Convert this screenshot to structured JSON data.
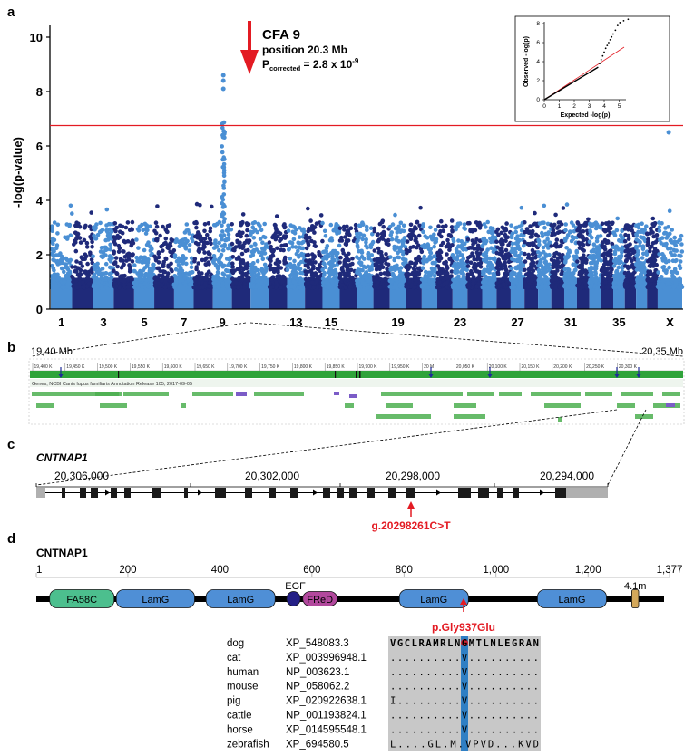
{
  "panels": {
    "a": "a",
    "b": "b",
    "c": "c",
    "d": "d"
  },
  "manhattan": {
    "ylabel": "-log(p-value)",
    "yticks": [
      0,
      2,
      4,
      6,
      8,
      10
    ],
    "ylim": [
      0,
      10.5
    ],
    "threshold": 6.75,
    "xticks": [
      "1",
      "3",
      "5",
      "7",
      "9",
      "13",
      "15",
      "19",
      "23",
      "27",
      "31",
      "35",
      "X"
    ],
    "chromosomes": 39,
    "colors": {
      "light": "#4a8fd4",
      "dark": "#1f2a7a",
      "threshold": "#e31b23",
      "arrow": "#e31b23"
    },
    "annotation": {
      "title": "CFA 9",
      "position": "position 20.3 Mb",
      "p_prefix": "P",
      "p_sub": "corrected",
      "p_value": " = 2.8 x 10",
      "p_exp": "-9"
    },
    "peak_points": [
      8.6,
      8.4,
      8.1
    ],
    "x_chr_point": 6.5
  },
  "qqplot": {
    "xlabel": "Expected -log(p)",
    "ylabel": "Observed -log(p)",
    "xticks": [
      "0",
      "1",
      "2",
      "3",
      "4",
      "5"
    ],
    "yticks": [
      "0",
      "2",
      "4",
      "6",
      "8"
    ]
  },
  "region": {
    "left": "19,40 Mb",
    "right": "20,35 Mb",
    "ruler_ticks": [
      "19,400 K",
      "19,450 K",
      "19,500 K",
      "19,550 K",
      "19,600 K",
      "19,650 K",
      "19,700 K",
      "19,750 K",
      "19,800 K",
      "19,850 K",
      "19,900 K",
      "19,950 K",
      "20 M",
      "20,050 K",
      "20,100 K",
      "20,150 K",
      "20,200 K",
      "20,250 K",
      "20,300 K"
    ],
    "genes_label": "Genes, NCBI Canis lupus familiaris Annotation Release 105, 2017-09-05"
  },
  "gene": {
    "name": "CNTNAP1",
    "coords": [
      "20,306,000",
      "20,302,000",
      "20,298,000",
      "20,294,000"
    ],
    "variant": "g.20298261C>T"
  },
  "protein": {
    "name": "CNTNAP1",
    "ticks": [
      "1",
      "200",
      "400",
      "600",
      "800",
      "1,000",
      "1,200",
      "1,377"
    ],
    "domains": [
      "FA58C",
      "LamG",
      "LamG",
      "EGF",
      "FReD",
      "LamG",
      "LamG",
      "4.1m"
    ],
    "variant": "p.Gly937Glu",
    "alignment": [
      {
        "species": "dog",
        "acc": "XP_548083.3",
        "seq": "VGCLRAMRLNGMTLNLEGRAN"
      },
      {
        "species": "cat",
        "acc": "XP_003996948.1",
        "seq": "..........V.........."
      },
      {
        "species": "human",
        "acc": "NP_003623.1",
        "seq": "..........V.........."
      },
      {
        "species": "mouse",
        "acc": "NP_058062.2",
        "seq": "..........V.........."
      },
      {
        "species": "pig",
        "acc": "XP_020922638.1",
        "seq": "I.........V.........."
      },
      {
        "species": "cattle",
        "acc": "NP_001193824.1",
        "seq": "..........V.........."
      },
      {
        "species": "horse",
        "acc": "XP_014595548.1",
        "seq": "..........V.........."
      },
      {
        "species": "zebrafish",
        "acc": "XP_694580.5",
        "seq": "L....GL.M.VPVD...KVD"
      }
    ]
  }
}
